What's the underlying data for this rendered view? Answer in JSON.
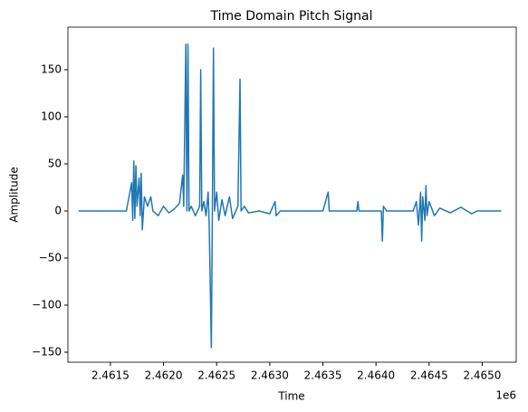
{
  "chart_data": {
    "type": "line",
    "title": "Time Domain Pitch Signal",
    "x_label": "Time",
    "y_label": "Amplitude",
    "x_offset_label": "1e6",
    "series": [
      {
        "color": "#1f77b4",
        "x": [
          2.4612,
          2.46165,
          2.4617,
          2.46171,
          2.46172,
          2.46173,
          2.46174,
          2.46175,
          2.46177,
          2.46178,
          2.46179,
          2.4618,
          2.46182,
          2.46185,
          2.46188,
          2.4619,
          2.46195,
          2.462,
          2.46205,
          2.4621,
          2.46215,
          2.46218,
          2.46219,
          2.46221,
          2.46222,
          2.46223,
          2.46224,
          2.46226,
          2.4623,
          2.46234,
          2.46235,
          2.46236,
          2.46238,
          2.4624,
          2.46242,
          2.46243,
          2.46245,
          2.46246,
          2.46247,
          2.46248,
          2.4625,
          2.46252,
          2.46255,
          2.46258,
          2.46262,
          2.46265,
          2.4627,
          2.46272,
          2.46273,
          2.46276,
          2.4628,
          2.4629,
          2.463,
          2.46305,
          2.46306,
          2.4631,
          2.4635,
          2.46355,
          2.46356,
          2.46382,
          2.46383,
          2.46384,
          2.46405,
          2.46406,
          2.46407,
          2.4641,
          2.46435,
          2.46438,
          2.4644,
          2.46442,
          2.46443,
          2.46444,
          2.46446,
          2.46447,
          2.46448,
          2.4645,
          2.46455,
          2.4646,
          2.4647,
          2.4648,
          2.4649,
          2.46495,
          2.46518
        ],
        "values": [
          0,
          0,
          30,
          -10,
          53,
          -8,
          48,
          5,
          35,
          -5,
          40,
          -20,
          15,
          5,
          15,
          0,
          -5,
          5,
          -2,
          2,
          8,
          38,
          5,
          177,
          0,
          177,
          0,
          5,
          -5,
          5,
          150,
          0,
          10,
          -5,
          20,
          -15,
          -145,
          5,
          173,
          0,
          20,
          -10,
          12,
          -5,
          15,
          -8,
          5,
          140,
          0,
          5,
          -2,
          0,
          -3,
          10,
          -5,
          0,
          0,
          20,
          0,
          0,
          10,
          0,
          0,
          -32,
          5,
          0,
          0,
          10,
          -15,
          20,
          -32,
          15,
          -10,
          27,
          -5,
          10,
          -5,
          3,
          -2,
          4,
          -3,
          0,
          0
        ]
      }
    ],
    "xlim": [
      2.4611,
      2.46532
    ],
    "ylim": [
      -160.6,
      195.2
    ],
    "xticks": [
      {
        "value": 2.4615,
        "label": "2.4615"
      },
      {
        "value": 2.462,
        "label": "2.4620"
      },
      {
        "value": 2.4625,
        "label": "2.4625"
      },
      {
        "value": 2.463,
        "label": "2.4630"
      },
      {
        "value": 2.4635,
        "label": "2.4635"
      },
      {
        "value": 2.464,
        "label": "2.4640"
      },
      {
        "value": 2.4645,
        "label": "2.4645"
      },
      {
        "value": 2.465,
        "label": "2.4650"
      }
    ],
    "yticks": [
      {
        "value": -150,
        "label": "−150"
      },
      {
        "value": -100,
        "label": "−100"
      },
      {
        "value": -50,
        "label": "−50"
      },
      0,
      50,
      100,
      150
    ],
    "grid": false
  }
}
